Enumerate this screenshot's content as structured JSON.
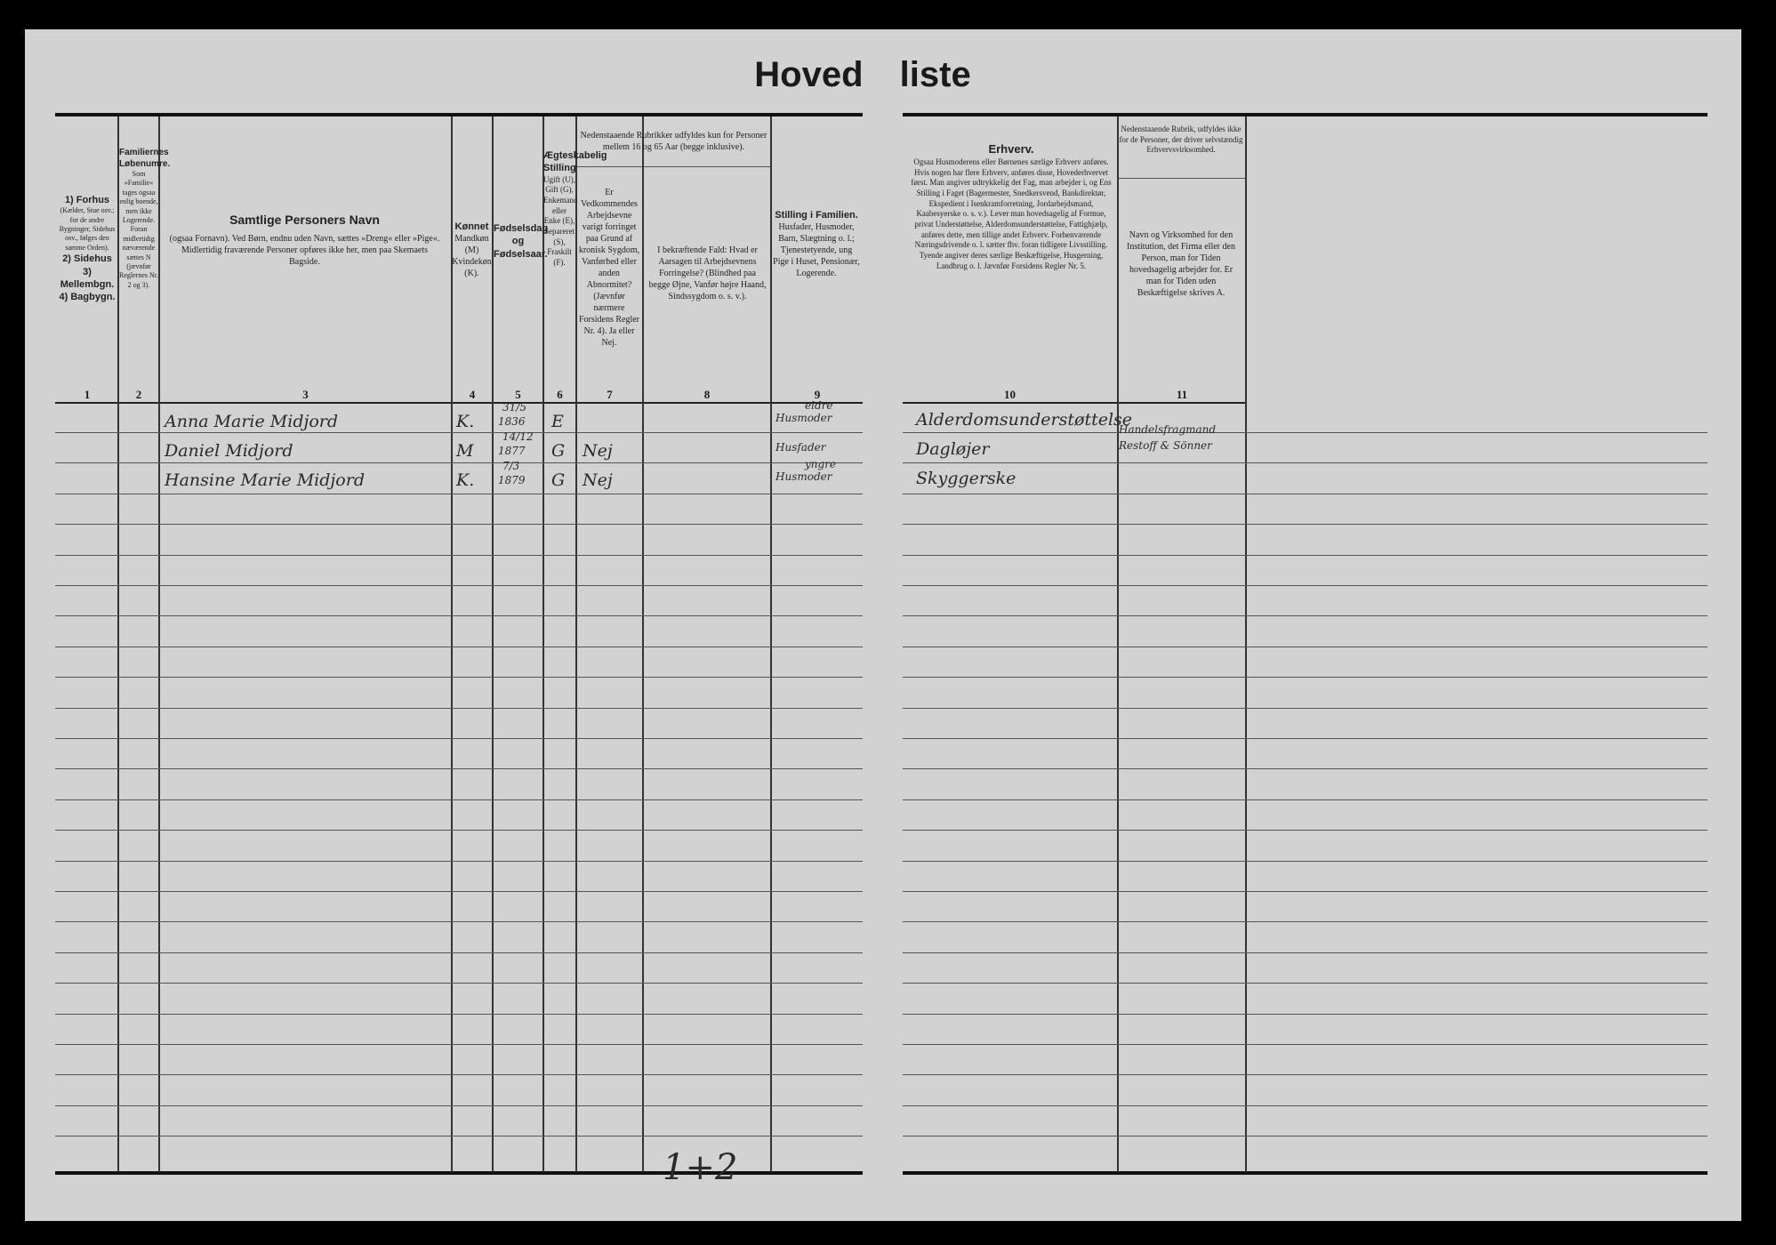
{
  "title": "Hoved liste",
  "columns": [
    {
      "number": "1",
      "title": "1) Forhus",
      "text": "(Kælder, Stue osv.; for de andre Bygninger, Sidehus osv., følges den samme Orden).",
      "extra": [
        "2) Sidehus",
        "3) Mellembgn.",
        "4) Bagbygn."
      ]
    },
    {
      "number": "2",
      "title": "Familiernes Løbenumre.",
      "text": "Som »Familie« tages ogsaa enlig boende, men ikke Logerende. Foran midlertidig næværende sættes N (jævnfør Reglernes Nr. 2 og 3)."
    },
    {
      "number": "3",
      "title": "Samtlige Personers Navn",
      "text": "(ogsaa Fornavn). Ved Børn, endnu uden Navn, sættes »Dreng« eller »Pige«. Midlertidig fraværende Personer opføres ikke her, men paa Skemaets Bagside."
    },
    {
      "number": "4",
      "title": "Kønnet",
      "text": "Mandkøn (M) Kvindekøn (K)."
    },
    {
      "number": "5",
      "title": "Fødselsdag og Fødselsaar.",
      "text": ""
    },
    {
      "number": "6",
      "title": "Ægteskabelig Stilling",
      "text": "Ugift (U), Gift (G), Enkemand eller Enke (E), Separeret (S), Fraskilt (F)."
    },
    {
      "number": "7",
      "title": "",
      "text": "Er Vedkommendes Arbejdsevne varigt forringet paa Grund af kronisk Sygdom, Vanførhed eller anden Abnormitet? (Jævnfør nærmere Forsidens Regler Nr. 4). Ja eller Nej."
    },
    {
      "number": "8",
      "title": "",
      "text": "I bekræftende Fald: Hvad er Aarsagen til Arbejdsevnens Forringelse? (Blindhed paa begge Øjne, Vanfør højre Haand, Sindssygdom o. s. v.)."
    },
    {
      "number": "9",
      "title": "Stilling i Familien.",
      "text": "Husfader, Husmoder, Barn, Slægtning o. l.; Tjenestetyende, ung Pige i Huset, Pensionær, Logerende."
    },
    {
      "number": "10",
      "title": "Erhverv.",
      "text": "Ogsaa Husmoderens eller Børnenes særlige Erhverv anføres. Hvis nogen har flere Erhverv, anføres disse, Hovederhvervet først. Man angiver udtrykkelig det Fag, man arbejder i, og Ens Stilling i Faget (Bagermester, Snedkersvend, Bankdirektør, Ekspedient i Isenkramforretning, Jordarbejdsmand, Kaabesyerske o. s. v.). Lever man hovedsagelig af Formue, privat Understøttelse, Alderdomsunderstøttelse, Fattighjælp, anføres dette, men tillige andet Erhverv. Forhenværende Næringsdrivende o. l. sætter fhv. foran tidligere Livsstilling. Tyende angiver deres særlige Beskæftigelse, Husgerning, Landbrug o. l. Jævnfør Forsidens Regler Nr. 5."
    },
    {
      "number": "11",
      "title": "",
      "text": "Navn og Virksomhed for den Institution, det Firma eller den Person, man for Tiden hovedsagelig arbejder for. Er man for Tiden uden Beskæftigelse skrives A."
    }
  ],
  "rubric_7_8": "Nedenstaaende Rubrikker udfyldes kun for Personer mellem 16 og 65 Aar (begge inklusive).",
  "rubric_11": "Nedenstaaende Rubrik, udfyldes ikke for de Personer, der driver selvstændig Erhvervsvirksomhed.",
  "rows": [
    {
      "name": "Anna Marie Midjord",
      "sex": "K.",
      "birth_day": "31/5",
      "birth_year": "1836",
      "marital": "E",
      "disabled": "",
      "cause": "",
      "family_position": "Husmoder",
      "family_note": "eldre",
      "occupation": "Alderdomsunderstøttelse",
      "employer": ""
    },
    {
      "name": "Daniel Midjord",
      "sex": "M",
      "birth_day": "14/12",
      "birth_year": "1877",
      "marital": "G",
      "disabled": "Nej",
      "cause": "",
      "family_position": "Husfader",
      "family_note": "",
      "occupation": "Dagløjer",
      "employer": "Handelsfragmand Restoff & Sönner"
    },
    {
      "name": "Hansine Marie Midjord",
      "sex": "K.",
      "birth_day": "7/3",
      "birth_year": "1879",
      "marital": "G",
      "disabled": "Nej",
      "cause": "",
      "family_position": "Husmoder",
      "family_note": "yngre",
      "occupation": "Skyggerske",
      "employer": ""
    }
  ],
  "footer_note": "1+2"
}
